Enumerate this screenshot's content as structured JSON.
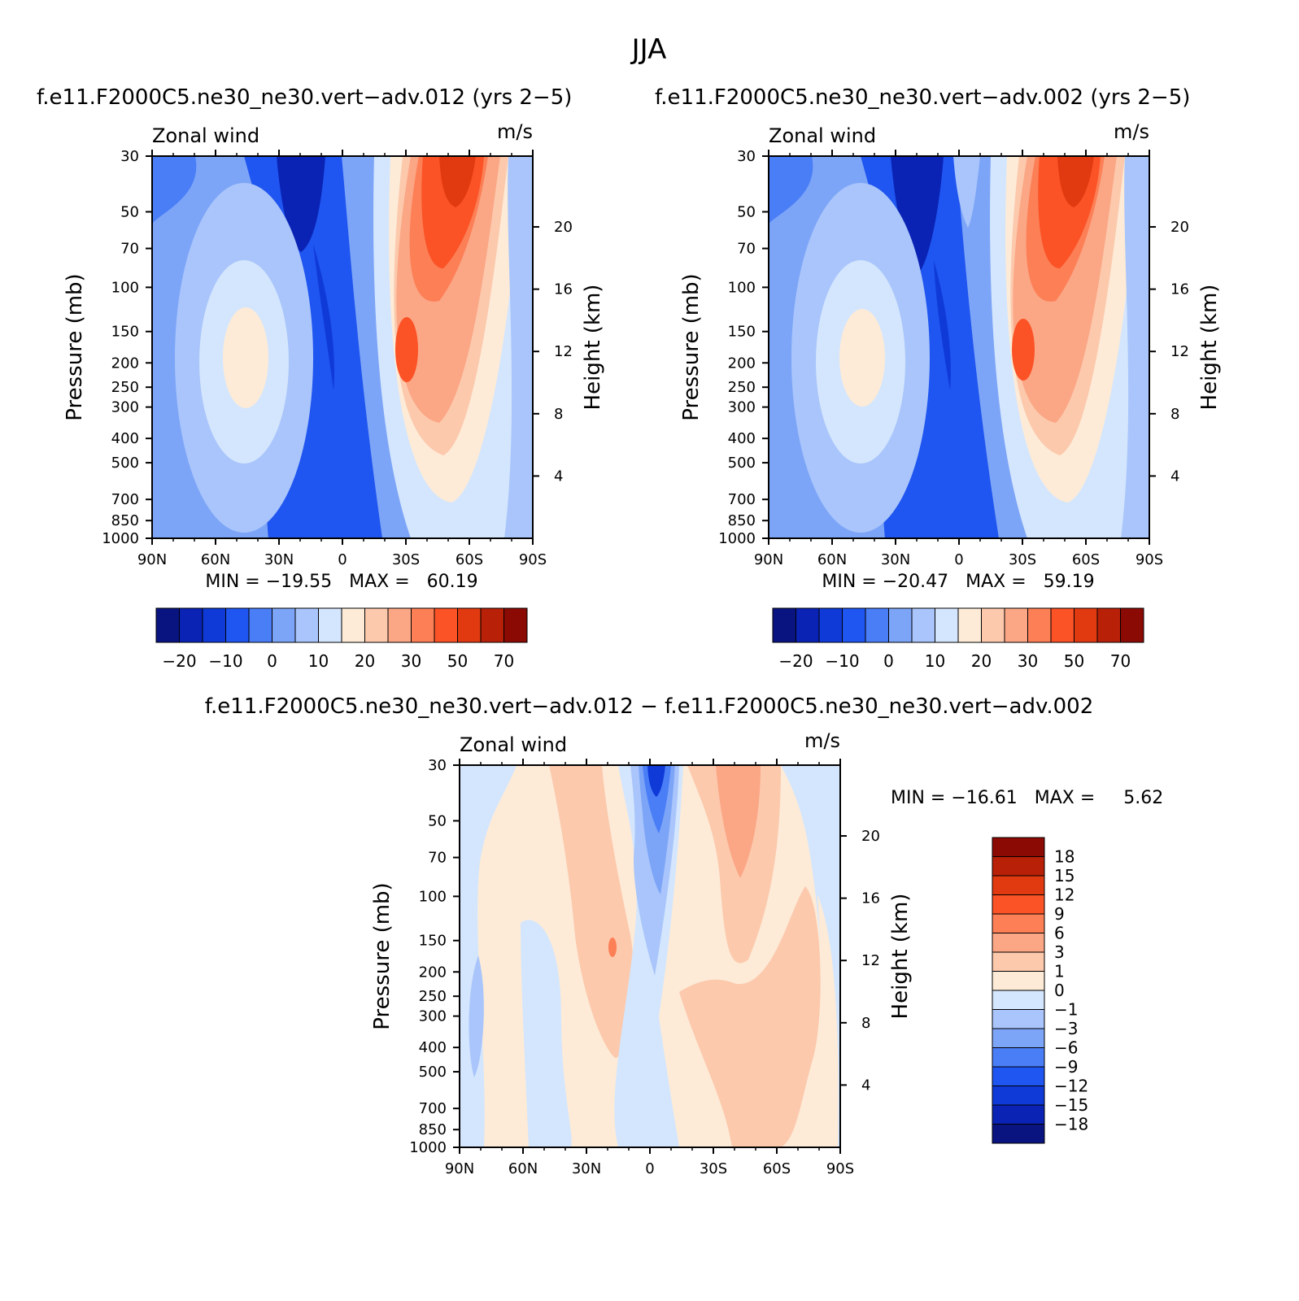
{
  "figure": {
    "title": "JJA"
  },
  "colors": {
    "abs_levels": [
      "#0a1480",
      "#0a23b4",
      "#0f3ad8",
      "#1f55f0",
      "#4a7ef7",
      "#7da5f7",
      "#a9c5fb",
      "#d4e6fd",
      "#fdebd7",
      "#fcc9ad",
      "#fba685",
      "#fc7f56",
      "#fb5226",
      "#e23a10",
      "#b82008",
      "#8c0a04"
    ],
    "diff_levels": [
      "#0a1480",
      "#0a23b4",
      "#0f3ad8",
      "#1f55f0",
      "#4a7ef7",
      "#7da5f7",
      "#a9c5fb",
      "#d4e6fd",
      "#fdebd7",
      "#fcc9ad",
      "#fba685",
      "#fc7f56",
      "#fb5226",
      "#e23a10",
      "#b82008",
      "#8c0a04"
    ]
  },
  "chart_data": [
    {
      "type": "heatmap",
      "panel": "top-left",
      "title": "f.e11.F2000C5.ne30_ne30.vert−adv.012 (yrs 2−5)",
      "left_label": "Zonal wind",
      "right_label": "m/s",
      "ylabel": "Pressure (mb)",
      "ylabel_right": "Height (km)",
      "x_ticks": [
        "90N",
        "60N",
        "30N",
        "0",
        "30S",
        "60S",
        "90S"
      ],
      "xlim": [
        90,
        -90
      ],
      "y_ticks": [
        30,
        50,
        70,
        100,
        150,
        200,
        250,
        300,
        400,
        500,
        700,
        850,
        1000
      ],
      "ylim": [
        1000,
        30
      ],
      "height_ticks": [
        4,
        8,
        12,
        16,
        20
      ],
      "stats": "MIN = −19.55   MAX =   60.19",
      "colorbar_labels": [
        "−20",
        "−10",
        "0",
        "10",
        "20",
        "30",
        "50",
        "70"
      ]
    },
    {
      "type": "heatmap",
      "panel": "top-right",
      "title": "f.e11.F2000C5.ne30_ne30.vert−adv.002 (yrs 2−5)",
      "left_label": "Zonal wind",
      "right_label": "m/s",
      "ylabel": "Pressure (mb)",
      "ylabel_right": "Height (km)",
      "x_ticks": [
        "90N",
        "60N",
        "30N",
        "0",
        "30S",
        "60S",
        "90S"
      ],
      "xlim": [
        90,
        -90
      ],
      "y_ticks": [
        30,
        50,
        70,
        100,
        150,
        200,
        250,
        300,
        400,
        500,
        700,
        850,
        1000
      ],
      "ylim": [
        1000,
        30
      ],
      "height_ticks": [
        4,
        8,
        12,
        16,
        20
      ],
      "stats": "MIN = −20.47   MAX =   59.19",
      "colorbar_labels": [
        "−20",
        "−10",
        "0",
        "10",
        "20",
        "30",
        "50",
        "70"
      ]
    },
    {
      "type": "heatmap",
      "panel": "bottom",
      "title": "f.e11.F2000C5.ne30_ne30.vert−adv.012 − f.e11.F2000C5.ne30_ne30.vert−adv.002",
      "left_label": "Zonal wind",
      "right_label": "m/s",
      "ylabel": "Pressure (mb)",
      "ylabel_right": "Height (km)",
      "x_ticks": [
        "90N",
        "60N",
        "30N",
        "0",
        "30S",
        "60S",
        "90S"
      ],
      "xlim": [
        90,
        -90
      ],
      "y_ticks": [
        30,
        50,
        70,
        100,
        150,
        200,
        250,
        300,
        400,
        500,
        700,
        850,
        1000
      ],
      "ylim": [
        1000,
        30
      ],
      "height_ticks": [
        4,
        8,
        12,
        16,
        20
      ],
      "stats": "MIN = −16.61   MAX =     5.62",
      "colorbar_labels": [
        "18",
        "15",
        "12",
        "9",
        "6",
        "3",
        "1",
        "0",
        "−1",
        "−3",
        "−6",
        "−9",
        "−12",
        "−15",
        "−18"
      ]
    }
  ]
}
